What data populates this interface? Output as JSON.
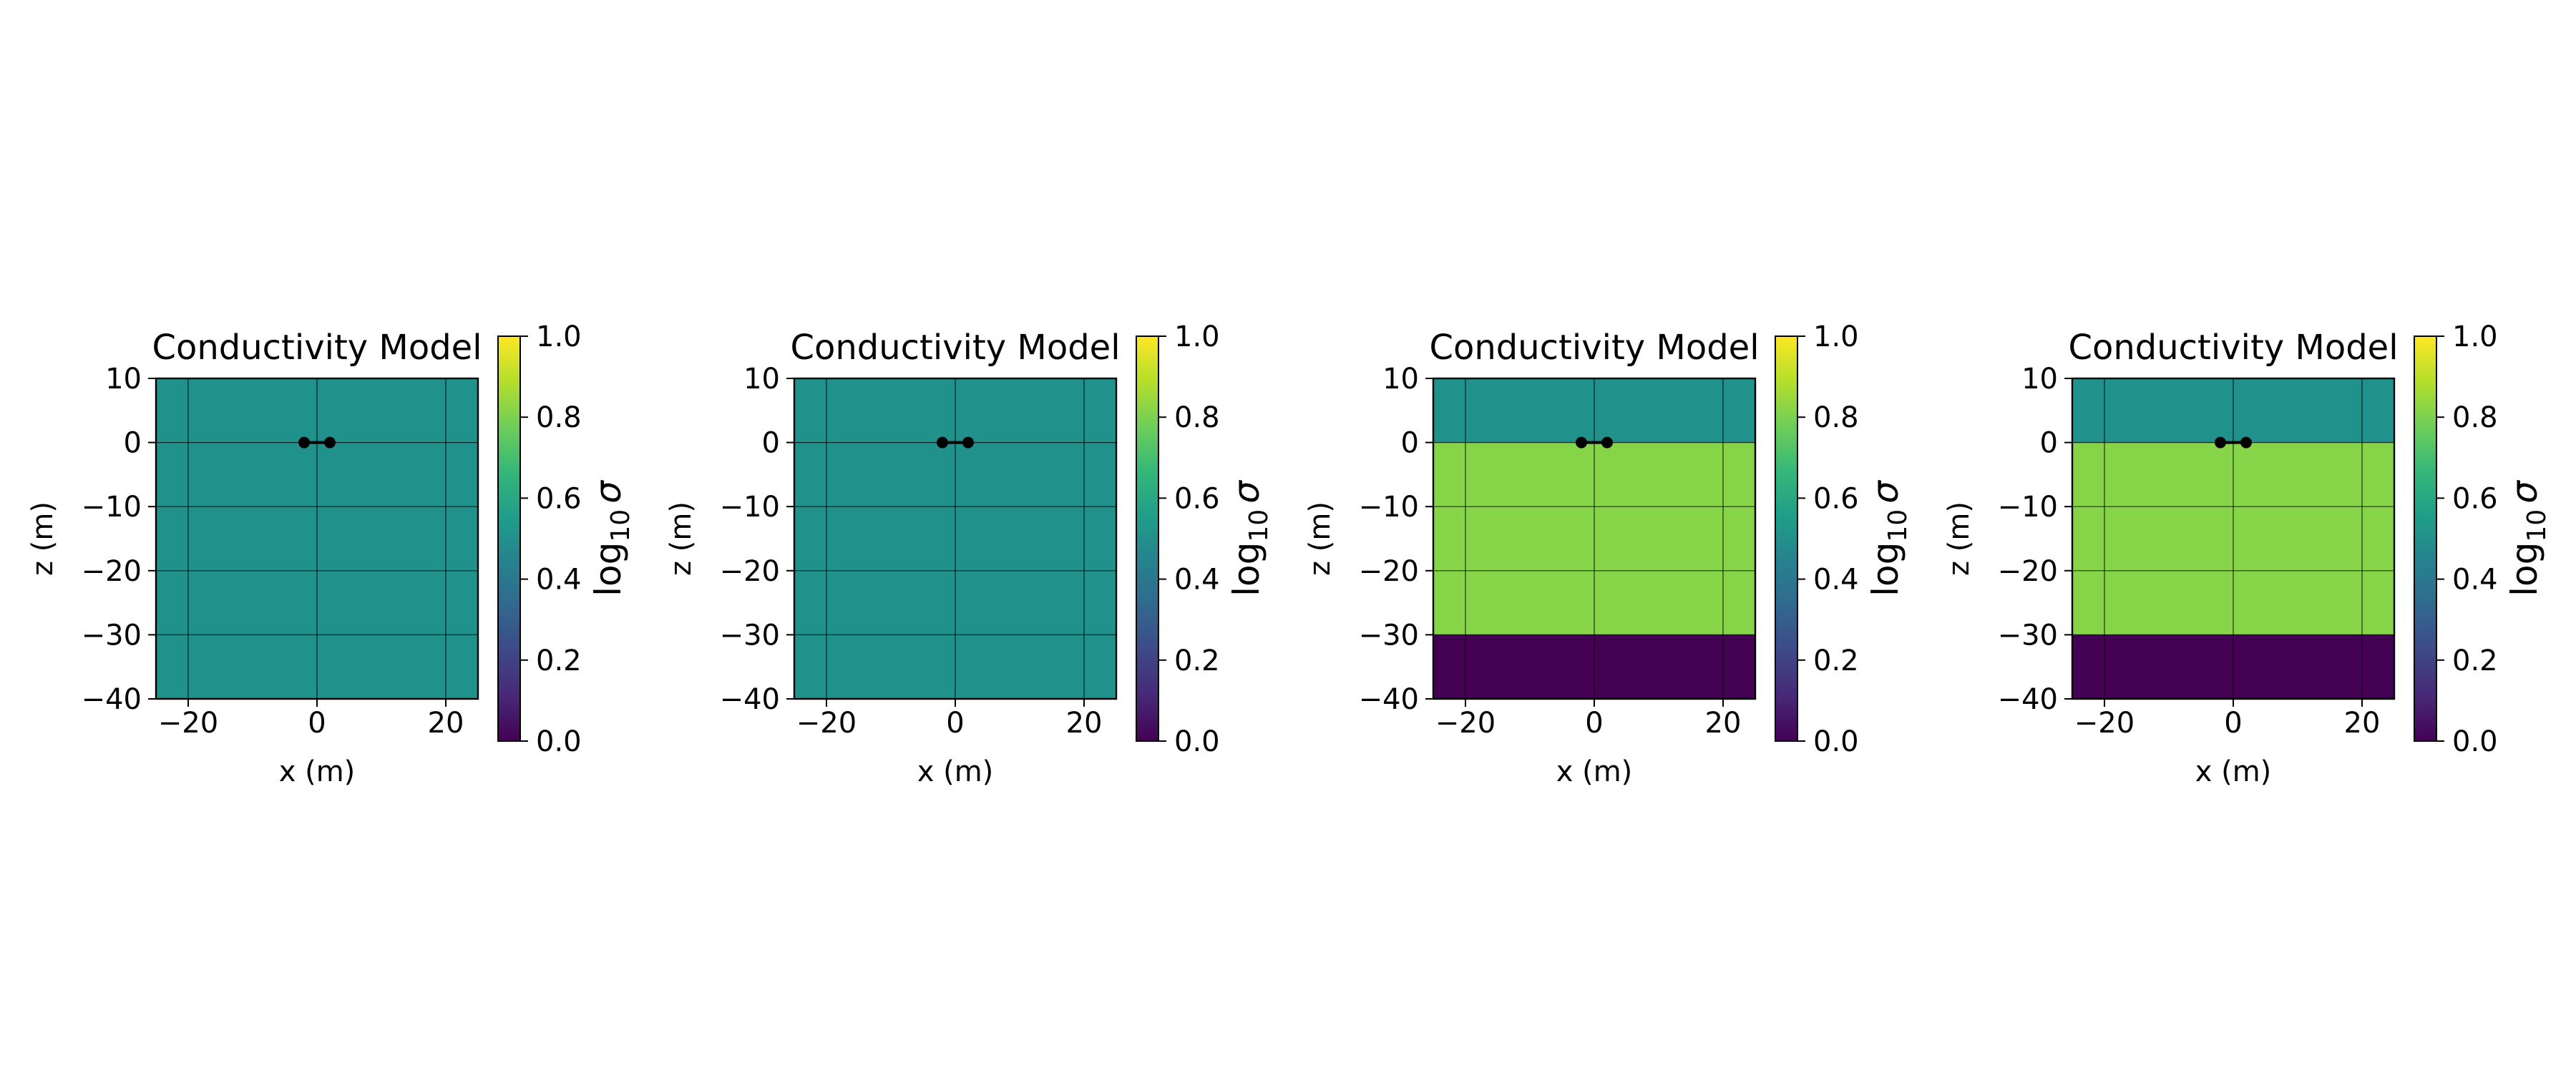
{
  "chart_data": [
    {
      "type": "heatmap",
      "title": "Conductivity Model",
      "xlabel": "x (m)",
      "ylabel": "z (m)",
      "xlim": [
        -25,
        25
      ],
      "ylim": [
        -40,
        10
      ],
      "xticks": [
        -20,
        0,
        20
      ],
      "xtick_labels": [
        "−20",
        "0",
        "20"
      ],
      "yticks": [
        10,
        0,
        -10,
        -20,
        -30,
        -40
      ],
      "ytick_labels": [
        "10",
        "0",
        "−10",
        "−20",
        "−30",
        "−40"
      ],
      "grid": true,
      "layers": [
        {
          "z_top": 10,
          "z_bottom": -40,
          "log10_sigma": 0.5,
          "color": "#21918c"
        }
      ],
      "source": {
        "x": [
          -2,
          2
        ],
        "z": [
          0,
          0
        ],
        "color": "#000000"
      },
      "colorbar": {
        "label": "log",
        "label_sub": "10",
        "label_sym": "σ",
        "min": 0.0,
        "max": 1.0,
        "ticks": [
          0.0,
          0.2,
          0.4,
          0.6,
          0.8,
          1.0
        ],
        "tick_labels": [
          "0.0",
          "0.2",
          "0.4",
          "0.6",
          "0.8",
          "1.0"
        ]
      }
    },
    {
      "type": "heatmap",
      "title": "Conductivity Model",
      "xlabel": "x (m)",
      "ylabel": "z (m)",
      "xlim": [
        -25,
        25
      ],
      "ylim": [
        -40,
        10
      ],
      "xticks": [
        -20,
        0,
        20
      ],
      "xtick_labels": [
        "−20",
        "0",
        "20"
      ],
      "yticks": [
        10,
        0,
        -10,
        -20,
        -30,
        -40
      ],
      "ytick_labels": [
        "10",
        "0",
        "−10",
        "−20",
        "−30",
        "−40"
      ],
      "grid": true,
      "layers": [
        {
          "z_top": 10,
          "z_bottom": -40,
          "log10_sigma": 0.5,
          "color": "#21918c"
        }
      ],
      "source": {
        "x": [
          -2,
          2
        ],
        "z": [
          0,
          0
        ],
        "color": "#000000"
      },
      "colorbar": {
        "label": "log",
        "label_sub": "10",
        "label_sym": "σ",
        "min": 0.0,
        "max": 1.0,
        "ticks": [
          0.0,
          0.2,
          0.4,
          0.6,
          0.8,
          1.0
        ],
        "tick_labels": [
          "0.0",
          "0.2",
          "0.4",
          "0.6",
          "0.8",
          "1.0"
        ]
      }
    },
    {
      "type": "heatmap",
      "title": "Conductivity Model",
      "xlabel": "x (m)",
      "ylabel": "z (m)",
      "xlim": [
        -25,
        25
      ],
      "ylim": [
        -40,
        10
      ],
      "xticks": [
        -20,
        0,
        20
      ],
      "xtick_labels": [
        "−20",
        "0",
        "20"
      ],
      "yticks": [
        10,
        0,
        -10,
        -20,
        -30,
        -40
      ],
      "ytick_labels": [
        "10",
        "0",
        "−10",
        "−20",
        "−30",
        "−40"
      ],
      "grid": true,
      "layers": [
        {
          "z_top": 10,
          "z_bottom": 0,
          "log10_sigma": 0.5,
          "color": "#21918c"
        },
        {
          "z_top": 0,
          "z_bottom": -30,
          "log10_sigma": 0.85,
          "color": "#86d549"
        },
        {
          "z_top": -30,
          "z_bottom": -40,
          "log10_sigma": 0.0,
          "color": "#440154"
        }
      ],
      "source": {
        "x": [
          -2,
          2
        ],
        "z": [
          0,
          0
        ],
        "color": "#000000"
      },
      "colorbar": {
        "label": "log",
        "label_sub": "10",
        "label_sym": "σ",
        "min": 0.0,
        "max": 1.0,
        "ticks": [
          0.0,
          0.2,
          0.4,
          0.6,
          0.8,
          1.0
        ],
        "tick_labels": [
          "0.0",
          "0.2",
          "0.4",
          "0.6",
          "0.8",
          "1.0"
        ]
      }
    },
    {
      "type": "heatmap",
      "title": "Conductivity Model",
      "xlabel": "x (m)",
      "ylabel": "z (m)",
      "xlim": [
        -25,
        25
      ],
      "ylim": [
        -40,
        10
      ],
      "xticks": [
        -20,
        0,
        20
      ],
      "xtick_labels": [
        "−20",
        "0",
        "20"
      ],
      "yticks": [
        10,
        0,
        -10,
        -20,
        -30,
        -40
      ],
      "ytick_labels": [
        "10",
        "0",
        "−10",
        "−20",
        "−30",
        "−40"
      ],
      "grid": true,
      "layers": [
        {
          "z_top": 10,
          "z_bottom": 0,
          "log10_sigma": 0.5,
          "color": "#21918c"
        },
        {
          "z_top": 0,
          "z_bottom": -30,
          "log10_sigma": 0.85,
          "color": "#86d549"
        },
        {
          "z_top": -30,
          "z_bottom": -40,
          "log10_sigma": 0.0,
          "color": "#440154"
        }
      ],
      "source": {
        "x": [
          -2,
          2
        ],
        "z": [
          0,
          0
        ],
        "color": "#000000"
      },
      "colorbar": {
        "label": "log",
        "label_sub": "10",
        "label_sym": "σ",
        "min": 0.0,
        "max": 1.0,
        "ticks": [
          0.0,
          0.2,
          0.4,
          0.6,
          0.8,
          1.0
        ],
        "tick_labels": [
          "0.0",
          "0.2",
          "0.4",
          "0.6",
          "0.8",
          "1.0"
        ]
      }
    }
  ],
  "colormap": {
    "name": "viridis",
    "stops": [
      "#440154",
      "#482878",
      "#3e4989",
      "#31688e",
      "#26828e",
      "#1f9e89",
      "#35b779",
      "#6ece58",
      "#b5de2b",
      "#fde725"
    ]
  }
}
